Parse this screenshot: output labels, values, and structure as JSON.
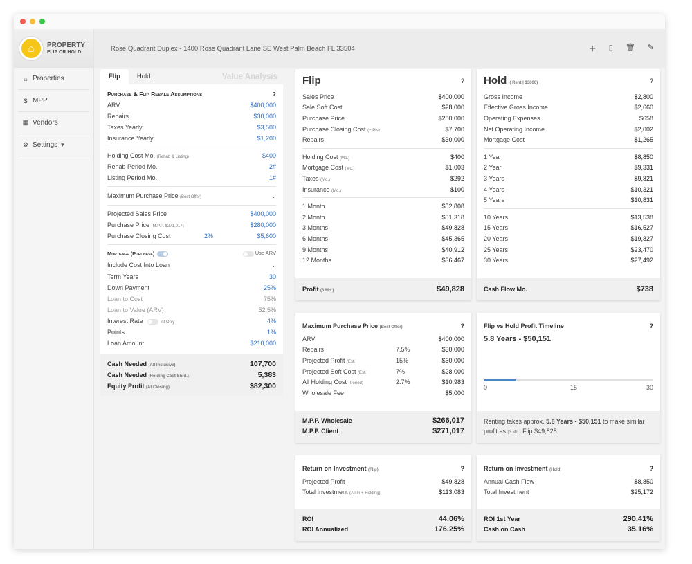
{
  "app": {
    "logo_line1": "PROPERTY",
    "logo_line2": "FLIP OR HOLD"
  },
  "sidebar": {
    "items": [
      {
        "label": "Properties",
        "icon": "home-icon"
      },
      {
        "label": "MPP",
        "icon": "dollar-icon"
      },
      {
        "label": "Vendors",
        "icon": "building-icon"
      },
      {
        "label": "Settings",
        "icon": "gear-icon"
      }
    ]
  },
  "header": {
    "address": "Rose Quadrant Duplex - 1400 Rose Quadrant Lane SE West Palm Beach FL 33504"
  },
  "left": {
    "tabs": [
      "Flip",
      "Hold"
    ],
    "tab_value_analysis": "Value Analysis",
    "section_title": "Purchase & Flip Resale Assumptions",
    "help": "?",
    "arv_label": "ARV",
    "arv": "$400,000",
    "repairs_label": "Repairs",
    "repairs": "$30,000",
    "taxes_label": "Taxes Yearly",
    "taxes": "$3,500",
    "insurance_label": "Insurance Yearly",
    "insurance": "$1,200",
    "holding_label": "Holding Cost Mo.",
    "holding_small": "(Rehab & Listing)",
    "holding": "$400",
    "rehab_label": "Rehab Period Mo.",
    "rehab": "2#",
    "listing_label": "Listing Period Mo.",
    "listing": "1#",
    "mpp_label": "Maximum Purchase Price",
    "mpp_small": "(Best Offer)",
    "proj_sales_label": "Projected Sales Price",
    "proj_sales": "$400,000",
    "purchase_label": "Purchase Price",
    "purchase_small": "(M.P.P. $271,017)",
    "purchase": "$280,000",
    "closing_label": "Purchase Closing Cost",
    "closing_pct": "2%",
    "closing": "$5,600",
    "mortgage_label": "Mortgage (Purchase)",
    "use_arv_label": "Use ARV",
    "include_label": "Include Cost Into Loan",
    "term_label": "Term Years",
    "term": "30",
    "down_label": "Down Payment",
    "down": "25%",
    "ltc_label": "Loan to Cost",
    "ltc": "75%",
    "ltv_label": "Loan to Value (ARV)",
    "ltv": "52.5%",
    "interest_label": "Interest Rate",
    "interest_only_label": "Int Only",
    "interest": "4%",
    "points_label": "Points",
    "points": "1%",
    "loan_label": "Loan Amount",
    "loan": "$210,000",
    "cash_needed_label": "Cash Needed",
    "cash_needed_small": "(All Inclusive)",
    "cash_needed": "107,700",
    "cash_needed2_label": "Cash Needed",
    "cash_needed2_small": "(Holding Cost Shrd.)",
    "cash_needed2": "5,383",
    "equity_label": "Equity Profit",
    "equity_small": "(At Closing)",
    "equity": "$82,300"
  },
  "flip": {
    "title": "Flip",
    "help": "?",
    "rows1": [
      {
        "label": "Sales Price",
        "value": "$400,000"
      },
      {
        "label": "Sale Soft Cost",
        "value": "$28,000"
      },
      {
        "label": "Purchase Price",
        "value": "$280,000"
      },
      {
        "label": "Purchase Closing Cost",
        "small": "(+ Pts)",
        "value": "$7,700"
      },
      {
        "label": "Repairs",
        "value": "$30,000"
      }
    ],
    "rows2": [
      {
        "label": "Holding Cost",
        "small": "(Mo.)",
        "value": "$400"
      },
      {
        "label": "Mortgage Cost",
        "small": "(Mo.)",
        "value": "$1,003"
      },
      {
        "label": "Taxes",
        "small": "(Mo.)",
        "value": "$292"
      },
      {
        "label": "Insurance",
        "small": "(Mo.)",
        "value": "$100"
      }
    ],
    "rows3": [
      {
        "label": "1 Month",
        "value": "$52,808"
      },
      {
        "label": "2 Month",
        "value": "$51,318"
      },
      {
        "label": "3 Months",
        "value": "$49,828"
      },
      {
        "label": "6 Months",
        "value": "$45,365"
      },
      {
        "label": "9 Months",
        "value": "$40,912"
      },
      {
        "label": "12 Months",
        "value": "$36,467"
      }
    ],
    "profit_label": "Profit",
    "profit_small": "(3 Mo.)",
    "profit": "$49,828"
  },
  "hold": {
    "title": "Hold",
    "title_small": "( Rent | $3000)",
    "help": "?",
    "rows1": [
      {
        "label": "Gross Income",
        "value": "$2,800"
      },
      {
        "label": "Effective Gross Income",
        "value": "$2,660"
      },
      {
        "label": "Operating Expenses",
        "value": "$658"
      },
      {
        "label": "Net Operating Income",
        "value": "$2,002"
      },
      {
        "label": "Mortgage Cost",
        "value": "$1,265"
      }
    ],
    "rows2": [
      {
        "label": "1 Year",
        "value": "$8,850"
      },
      {
        "label": "2 Year",
        "value": "$9,331"
      },
      {
        "label": "3 Years",
        "value": "$9,821"
      },
      {
        "label": "4 Years",
        "value": "$10,321"
      },
      {
        "label": "5 Years",
        "value": "$10,831"
      }
    ],
    "rows3": [
      {
        "label": "10 Years",
        "value": "$13,538"
      },
      {
        "label": "15 Years",
        "value": "$16,527"
      },
      {
        "label": "20 Years",
        "value": "$19,827"
      },
      {
        "label": "25 Years",
        "value": "$23,470"
      },
      {
        "label": "30 Years",
        "value": "$27,492"
      }
    ],
    "cashflow_label": "Cash Flow Mo.",
    "cashflow": "$738"
  },
  "mpp": {
    "title": "Maximum Purchase Price",
    "title_small": "(Best Offer)",
    "help": "?",
    "rows": [
      {
        "label": "ARV",
        "pct": "",
        "value": "$400,000"
      },
      {
        "label": "Repairs",
        "pct": "7.5%",
        "value": "$30,000"
      },
      {
        "label": "Projected Profit",
        "small": "(Est.)",
        "pct": "15%",
        "value": "$60,000"
      },
      {
        "label": "Projected Soft Cost",
        "small": "(Est.)",
        "pct": "7%",
        "value": "$28,000"
      },
      {
        "label": "All Holding Cost",
        "small": "(Period)",
        "pct": "2.7%",
        "value": "$10,983"
      },
      {
        "label": "Wholesale Fee",
        "pct": "",
        "value": "$5,000"
      }
    ],
    "wholesale_label": "M.P.P. Wholesale",
    "wholesale": "$266,017",
    "client_label": "M.P.P. Client",
    "client": "$271,017"
  },
  "timeline": {
    "title": "Flip vs Hold Profit Timeline",
    "help": "?",
    "headline": "5.8 Years - $50,151",
    "progress_years": 5.8,
    "axis": [
      "0",
      "15",
      "30"
    ],
    "foot_pre": "Renting takes approx.",
    "foot_bold": "5.8 Years - $50,151",
    "foot_mid": "to make similar profit as",
    "foot_small": "(3 Mo.)",
    "foot_post": "Flip $49,828"
  },
  "roi_flip": {
    "title": "Return on Investment",
    "title_small": "(Flip)",
    "help": "?",
    "rows": [
      {
        "label": "Projected Profit",
        "value": "$49,828"
      },
      {
        "label": "Total Investment",
        "small": "(All In + Holding)",
        "value": "$113,083"
      }
    ],
    "roi_label": "ROI",
    "roi": "44.06%",
    "roi_ann_label": "ROI Annualized",
    "roi_ann": "176.25%"
  },
  "roi_hold": {
    "title": "Return on Investment",
    "title_small": "(Hold)",
    "help": "?",
    "rows": [
      {
        "label": "Annual Cash Flow",
        "value": "$8,850"
      },
      {
        "label": "Total Investment",
        "value": "$25,172"
      }
    ],
    "roi_label": "ROI 1st Year",
    "roi": "290.41%",
    "coc_label": "Cash on Cash",
    "coc": "35.16%"
  }
}
